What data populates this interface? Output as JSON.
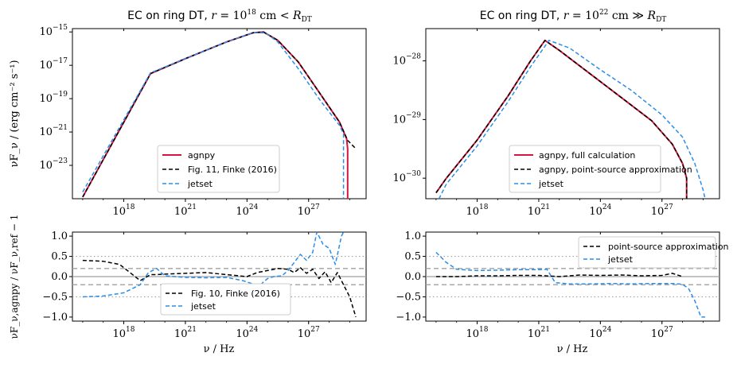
{
  "colors": {
    "agnpy": "#d6163e",
    "ref": "#000000",
    "jetset": "#2a8de8",
    "ref_dash_grey": "#a0a0a0",
    "dot_grey": "#a0a0a0"
  },
  "labels": {
    "xlabel": "ν / Hz",
    "ylabel_top": "νF_ν / (erg cm⁻² s⁻¹)",
    "ylabel_bottom": "νF_ν,agnpy / νF_ν,ref − 1",
    "top_left_title_prefix": "EC on ring DT, ",
    "top_right_title_prefix": "EC on ring DT, "
  },
  "chart_data": [
    {
      "id": "top_left",
      "type": "line",
      "title": "EC on ring DT, r = 10^18 cm < R_DT",
      "xscale": "log",
      "yscale": "log",
      "xlim_log10": [
        15.5,
        29.8
      ],
      "ylim_log10": [
        -25.0,
        -14.8
      ],
      "xticks": [
        "10^18",
        "10^21",
        "10^24",
        "10^27"
      ],
      "yticks": [
        "10^-15",
        "10^-17",
        "10^-19",
        "10^-21",
        "10^-23"
      ],
      "legend_position": "lower-center",
      "series": [
        {
          "name": "agnpy",
          "style": "solid",
          "x": [
            16,
            19.3,
            21,
            23,
            24.3,
            24.8,
            25.5,
            26.5,
            27.5,
            28.5,
            28.85,
            28.9,
            28.9
          ],
          "y": [
            -24.9,
            -17.5,
            -16.6,
            -15.6,
            -15.05,
            -15.0,
            -15.5,
            -16.8,
            -18.6,
            -20.4,
            -21.4,
            -22.0,
            -25.0
          ]
        },
        {
          "name": "Fig. 11, Finke (2016)",
          "style": "dashed",
          "x": [
            16,
            19.3,
            21,
            23,
            24.3,
            24.8,
            25.5,
            26.5,
            27.5,
            28.5,
            28.9,
            29.3
          ],
          "y": [
            -24.9,
            -17.5,
            -16.6,
            -15.6,
            -15.05,
            -15.0,
            -15.5,
            -16.8,
            -18.6,
            -20.4,
            -21.5,
            -22.0
          ]
        },
        {
          "name": "jetset",
          "style": "dashed",
          "x": [
            16,
            19.3,
            21,
            23,
            24.3,
            24.9,
            25.5,
            26.5,
            27.5,
            28.5,
            28.7,
            28.7
          ],
          "y": [
            -24.6,
            -17.45,
            -16.6,
            -15.6,
            -15.05,
            -15.05,
            -15.6,
            -17.2,
            -19.0,
            -20.6,
            -21.1,
            -25.0
          ]
        }
      ]
    },
    {
      "id": "top_right",
      "type": "line",
      "title": "EC on ring DT, r = 10^22 cm ≫ R_DT",
      "xscale": "log",
      "yscale": "log",
      "xlim_log10": [
        15.5,
        29.8
      ],
      "ylim_log10": [
        -30.35,
        -27.45
      ],
      "xticks": [
        "10^18",
        "10^21",
        "10^24",
        "10^27"
      ],
      "yticks": [
        "10^-28",
        "10^-29",
        "10^-30"
      ],
      "legend_position": "lower-center",
      "series": [
        {
          "name": "agnpy, full calculation",
          "style": "solid",
          "x": [
            16,
            16.5,
            18,
            19.5,
            20.6,
            21.3,
            22,
            23.5,
            25,
            26.5,
            27.5,
            28,
            28.2,
            28.2
          ],
          "y": [
            -30.25,
            -30.0,
            -29.35,
            -28.6,
            -28.0,
            -27.65,
            -27.82,
            -28.22,
            -28.62,
            -29.02,
            -29.42,
            -29.75,
            -30.0,
            -30.35
          ]
        },
        {
          "name": "agnpy, point-source approximation",
          "style": "dashed",
          "x": [
            16,
            16.5,
            18,
            19.5,
            20.6,
            21.3,
            22,
            23.5,
            25,
            26.5,
            27.5,
            28,
            28.2,
            28.2
          ],
          "y": [
            -30.25,
            -30.0,
            -29.35,
            -28.6,
            -28.0,
            -27.65,
            -27.82,
            -28.22,
            -28.62,
            -29.02,
            -29.42,
            -29.75,
            -30.0,
            -30.35
          ]
        },
        {
          "name": "jetset",
          "style": "dashed",
          "x": [
            16,
            16.5,
            18,
            19.5,
            20.6,
            21.5,
            22.5,
            24,
            25.5,
            27,
            28,
            28.6,
            29,
            29.1
          ],
          "y": [
            -30.45,
            -30.1,
            -29.45,
            -28.7,
            -28.1,
            -27.65,
            -27.78,
            -28.15,
            -28.5,
            -28.92,
            -29.3,
            -29.75,
            -30.2,
            -30.35
          ]
        }
      ]
    },
    {
      "id": "bottom_left",
      "type": "line",
      "xscale": "log",
      "xlim_log10": [
        15.5,
        29.8
      ],
      "ylim": [
        -1.1,
        1.1
      ],
      "xticks": [
        "10^18",
        "10^21",
        "10^24",
        "10^27"
      ],
      "yticks": [
        "1.0",
        "0.5",
        "0.0",
        "-0.5",
        "-1.0"
      ],
      "reference_lines": {
        "solid": [
          0
        ],
        "dashed": [
          0.2,
          -0.2
        ],
        "dotted": [
          0.5,
          -0.5
        ]
      },
      "legend_position": "lower-center",
      "series": [
        {
          "name": "Fig. 10, Finke (2016)",
          "style": "dashed",
          "x": [
            16,
            17,
            17.8,
            18.3,
            18.8,
            19.3,
            19.6,
            20,
            21,
            22,
            23,
            24,
            24.5,
            25,
            25.5,
            26,
            26.3,
            26.6,
            26.9,
            27.2,
            27.5,
            27.8,
            28.1,
            28.4,
            28.7,
            29.0,
            29.3
          ],
          "y": [
            0.4,
            0.38,
            0.3,
            0.1,
            -0.1,
            0.05,
            0.05,
            0.06,
            0.08,
            0.1,
            0.05,
            0.0,
            0.1,
            0.15,
            0.2,
            0.18,
            0.1,
            0.22,
            0.08,
            0.18,
            -0.05,
            0.12,
            -0.15,
            0.1,
            -0.2,
            -0.5,
            -1.0
          ]
        },
        {
          "name": "jetset",
          "style": "dashed",
          "x": [
            16,
            17,
            18,
            18.8,
            19.2,
            19.6,
            20,
            21,
            22,
            23,
            23.8,
            24.4,
            24.7,
            25,
            25.3,
            25.7,
            26,
            26.3,
            26.6,
            26.9,
            27.2,
            27.4,
            27.7,
            28.0,
            28.3,
            28.6,
            28.7
          ],
          "y": [
            -0.5,
            -0.48,
            -0.4,
            -0.2,
            0.1,
            0.2,
            0.02,
            -0.02,
            -0.03,
            -0.02,
            -0.1,
            -0.2,
            -0.18,
            -0.05,
            0.0,
            0.02,
            0.15,
            0.35,
            0.55,
            0.4,
            0.6,
            1.1,
            0.8,
            0.7,
            0.3,
            1.0,
            1.1
          ]
        }
      ]
    },
    {
      "id": "bottom_right",
      "type": "line",
      "xscale": "log",
      "xlim_log10": [
        15.5,
        29.8
      ],
      "ylim": [
        -1.1,
        1.1
      ],
      "xticks": [
        "10^18",
        "10^21",
        "10^24",
        "10^27"
      ],
      "yticks": [
        "1.0",
        "0.5",
        "0.0",
        "-0.5",
        "-1.0"
      ],
      "reference_lines": {
        "solid": [
          0
        ],
        "dashed": [
          0.2,
          -0.2
        ],
        "dotted": [
          0.5,
          -0.5
        ]
      },
      "legend_position": "top-right",
      "series": [
        {
          "name": "point-source approximation",
          "style": "dashed",
          "x": [
            16,
            17,
            18,
            19,
            20,
            21,
            22,
            23,
            24,
            25,
            26,
            27,
            27.5,
            28
          ],
          "y": [
            0.0,
            0.0,
            0.02,
            0.02,
            0.03,
            0.03,
            0.0,
            0.04,
            0.03,
            0.04,
            0.02,
            0.03,
            0.08,
            0.0
          ]
        },
        {
          "name": "jetset",
          "style": "dashed",
          "x": [
            16,
            16.5,
            17,
            18,
            19,
            20,
            21,
            21.4,
            21.8,
            22.5,
            23.5,
            24.5,
            25.5,
            26.5,
            27.5,
            28.0,
            28.3,
            28.6,
            28.9,
            29.1
          ],
          "y": [
            0.6,
            0.35,
            0.18,
            0.15,
            0.16,
            0.17,
            0.17,
            0.18,
            -0.15,
            -0.18,
            -0.18,
            -0.17,
            -0.18,
            -0.17,
            -0.17,
            -0.19,
            -0.3,
            -0.6,
            -1.0,
            -1.0
          ]
        }
      ]
    }
  ]
}
